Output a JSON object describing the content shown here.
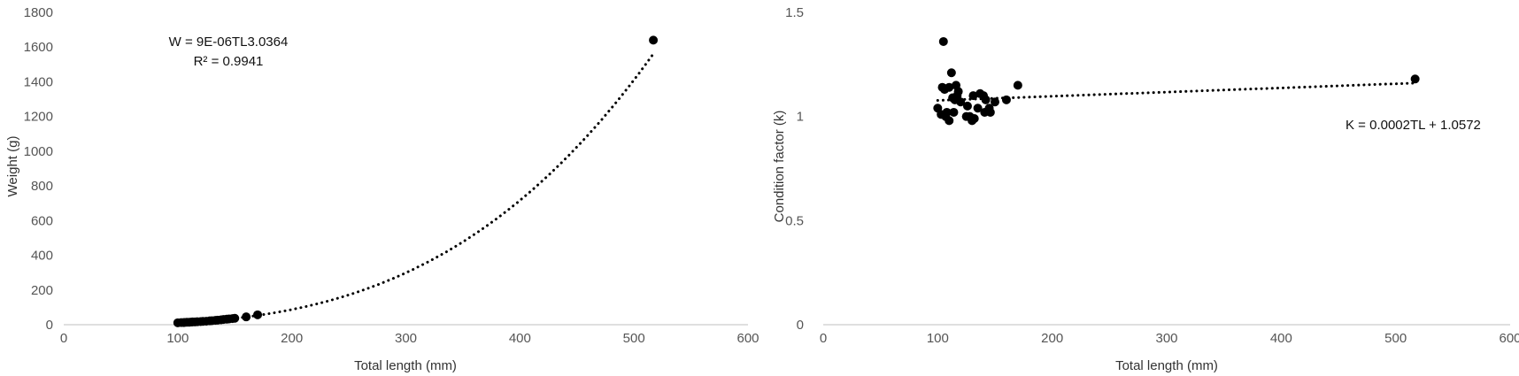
{
  "chart_data": [
    {
      "type": "scatter",
      "title": "",
      "xlabel": "Total length (mm)",
      "ylabel": "Weight (g)",
      "xlim": [
        0,
        600
      ],
      "ylim": [
        0,
        1800
      ],
      "xticks": [
        0,
        100,
        200,
        300,
        400,
        500,
        600
      ],
      "yticks": [
        0,
        200,
        400,
        600,
        800,
        1000,
        1200,
        1400,
        1600,
        1800
      ],
      "grid": false,
      "legend": "none",
      "annotations": [
        "W = 9E-06TL3.0364",
        "R² = 0.9941"
      ],
      "trendline": {
        "type": "power",
        "a": 9e-06,
        "b": 3.0364,
        "x_range": [
          100,
          517
        ]
      },
      "series": [
        {
          "x": [
            100,
            103,
            105,
            106,
            108,
            110,
            112,
            113,
            115,
            117,
            120,
            122,
            125,
            128,
            130,
            133,
            135,
            138,
            140,
            143,
            145,
            148,
            150,
            160,
            170,
            517
          ],
          "y": [
            11,
            12,
            12,
            13,
            14,
            14,
            15,
            16,
            16,
            17,
            18,
            19,
            20,
            22,
            23,
            25,
            26,
            28,
            30,
            32,
            33,
            35,
            37,
            45,
            57,
            1640
          ]
        }
      ]
    },
    {
      "type": "scatter",
      "title": "",
      "xlabel": "Total length (mm)",
      "ylabel": "Condition factor (k)",
      "xlim": [
        0,
        600
      ],
      "ylim": [
        0,
        1.5
      ],
      "xticks": [
        0,
        100,
        200,
        300,
        400,
        500,
        600
      ],
      "yticks": [
        0,
        0.5,
        1,
        1.5
      ],
      "grid": false,
      "legend": "none",
      "annotations": [
        "K = 0.0002TL + 1.0572"
      ],
      "trendline": {
        "type": "linear",
        "slope": 0.0002,
        "intercept": 1.0572,
        "x_range": [
          100,
          517
        ]
      },
      "series": [
        {
          "x": [
            100,
            103,
            104,
            105,
            106,
            107,
            108,
            110,
            110,
            112,
            113,
            114,
            115,
            116,
            117,
            118,
            120,
            125,
            126,
            128,
            130,
            131,
            132,
            135,
            137,
            140,
            141,
            142,
            145,
            146,
            150,
            160,
            170,
            517
          ],
          "y": [
            1.04,
            1.01,
            1.14,
            1.36,
            1.13,
            1.0,
            1.02,
            1.14,
            0.98,
            1.21,
            1.09,
            1.02,
            1.08,
            1.15,
            1.1,
            1.12,
            1.07,
            1.0,
            1.05,
            1.0,
            0.98,
            1.1,
            0.99,
            1.04,
            1.11,
            1.1,
            1.02,
            1.08,
            1.04,
            1.02,
            1.07,
            1.08,
            1.15,
            1.18
          ]
        }
      ]
    }
  ]
}
